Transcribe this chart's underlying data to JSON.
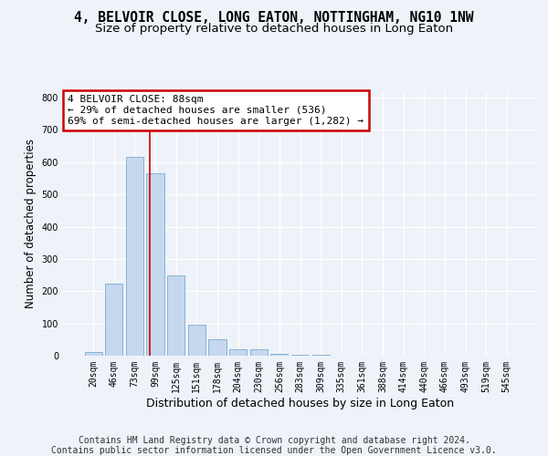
{
  "title_line1": "4, BELVOIR CLOSE, LONG EATON, NOTTINGHAM, NG10 1NW",
  "title_line2": "Size of property relative to detached houses in Long Eaton",
  "xlabel": "Distribution of detached houses by size in Long Eaton",
  "ylabel": "Number of detached properties",
  "categories": [
    "20sqm",
    "46sqm",
    "73sqm",
    "99sqm",
    "125sqm",
    "151sqm",
    "178sqm",
    "204sqm",
    "230sqm",
    "256sqm",
    "283sqm",
    "309sqm",
    "335sqm",
    "361sqm",
    "388sqm",
    "414sqm",
    "440sqm",
    "466sqm",
    "493sqm",
    "519sqm",
    "545sqm"
  ],
  "values": [
    10,
    223,
    617,
    565,
    248,
    96,
    50,
    20,
    20,
    5,
    3,
    2,
    1,
    0,
    0,
    0,
    0,
    0,
    0,
    0,
    0
  ],
  "bar_color": "#c5d8ee",
  "bar_edge_color": "#7aaad0",
  "annotation_text": "4 BELVOIR CLOSE: 88sqm\n← 29% of detached houses are smaller (536)\n69% of semi-detached houses are larger (1,282) →",
  "annotation_box_color": "#ffffff",
  "annotation_border_color": "#cc0000",
  "vline_x": 2.73,
  "vline_color": "#cc0000",
  "ylim": [
    0,
    820
  ],
  "yticks": [
    0,
    100,
    200,
    300,
    400,
    500,
    600,
    700,
    800
  ],
  "footer_line1": "Contains HM Land Registry data © Crown copyright and database right 2024.",
  "footer_line2": "Contains public sector information licensed under the Open Government Licence v3.0.",
  "bg_color": "#eef2f9",
  "plot_bg_color": "#eef2f9",
  "grid_color": "#ffffff",
  "title_fontsize": 10.5,
  "subtitle_fontsize": 9.5,
  "ylabel_fontsize": 8.5,
  "xlabel_fontsize": 9,
  "tick_fontsize": 7,
  "annotation_fontsize": 8,
  "footer_fontsize": 7
}
